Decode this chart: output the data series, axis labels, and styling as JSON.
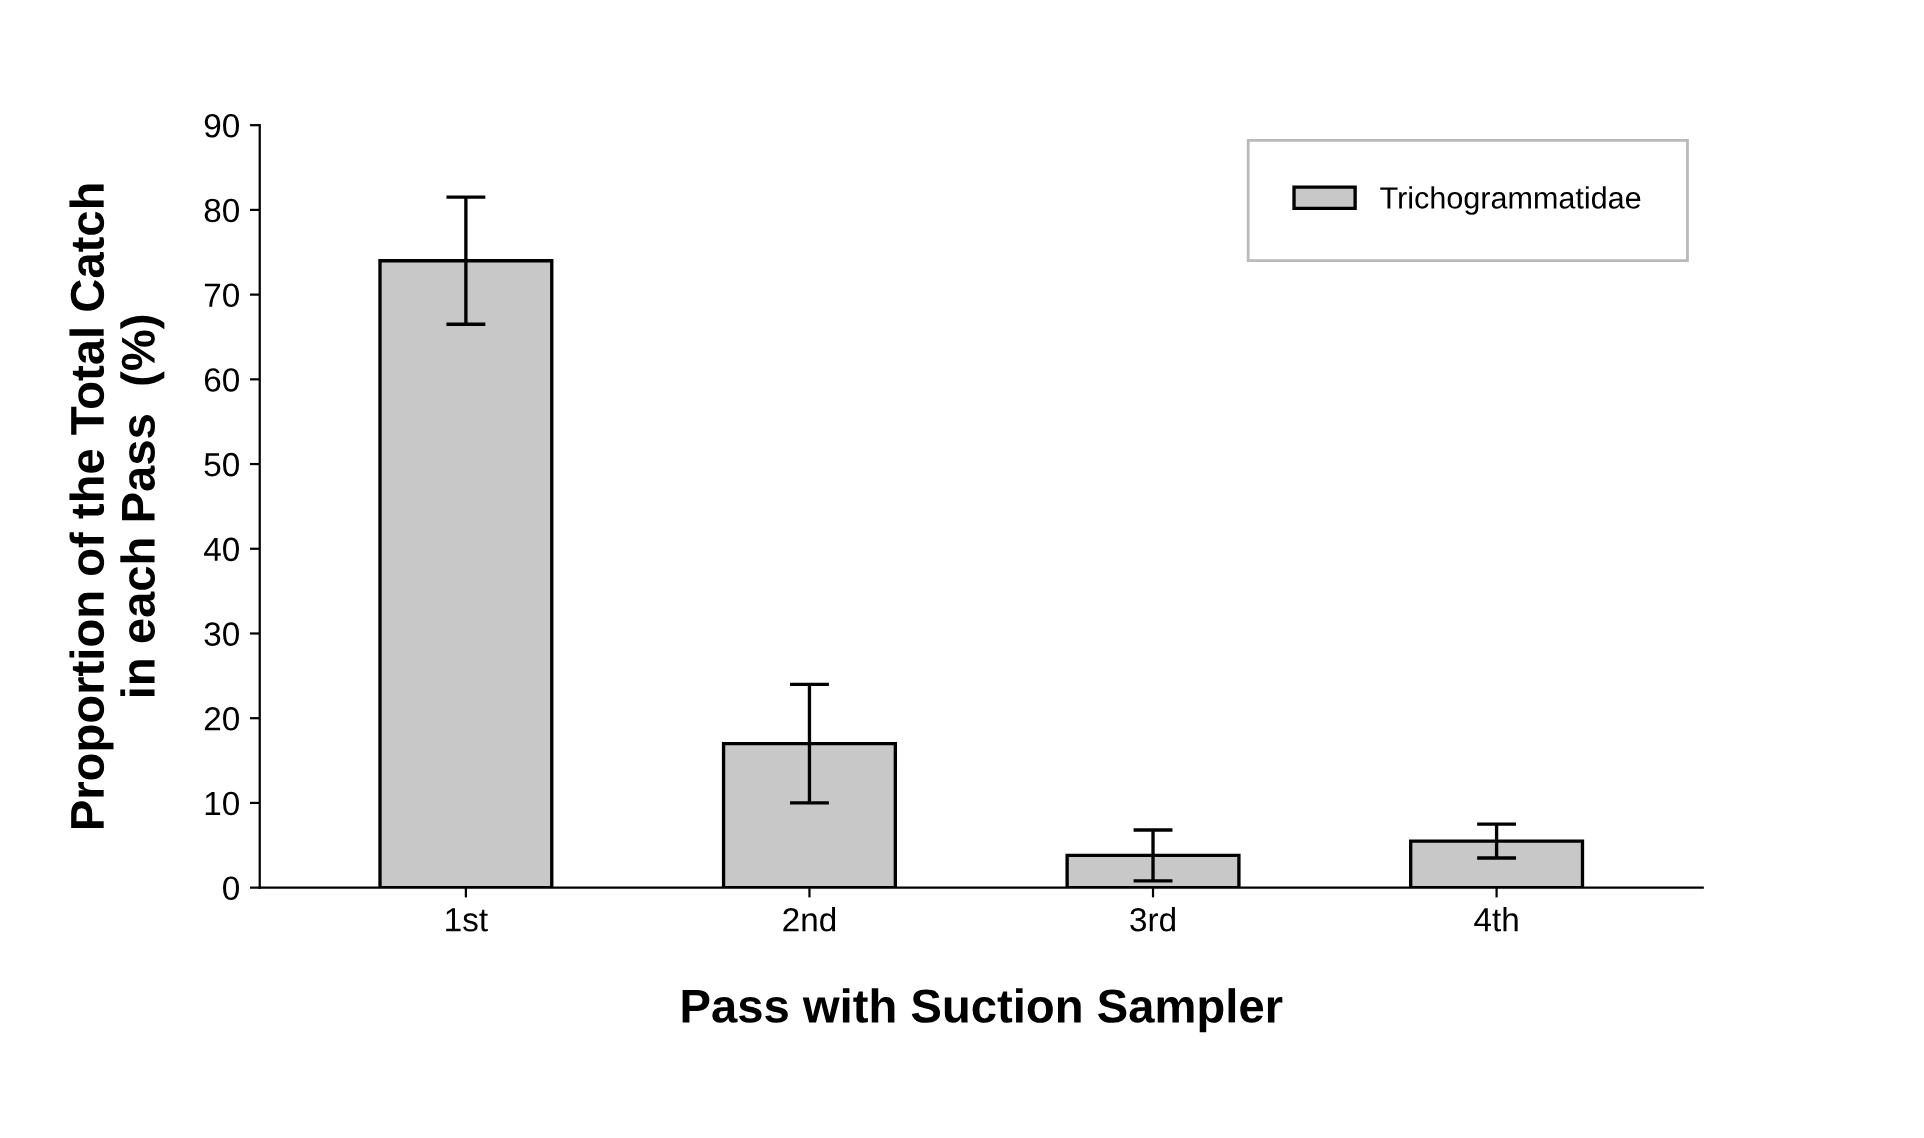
{
  "chart_data": {
    "type": "bar",
    "xlabel": "Pass with Suction Sampler",
    "ylabel": "Proportion of the Total Catch\nin each Pass  (%)",
    "categories": [
      "1st",
      "2nd",
      "3rd",
      "4th"
    ],
    "series": [
      {
        "name": "Trichogrammatidae",
        "color": "#c8c8c8",
        "values": [
          74,
          17,
          3.8,
          5.5
        ],
        "errors": [
          7.5,
          7,
          3,
          2
        ]
      }
    ],
    "ylim": [
      0,
      90
    ],
    "yticks": [
      0,
      10,
      20,
      30,
      40,
      50,
      60,
      70,
      80,
      90
    ],
    "grid": false,
    "legend": "top right"
  }
}
